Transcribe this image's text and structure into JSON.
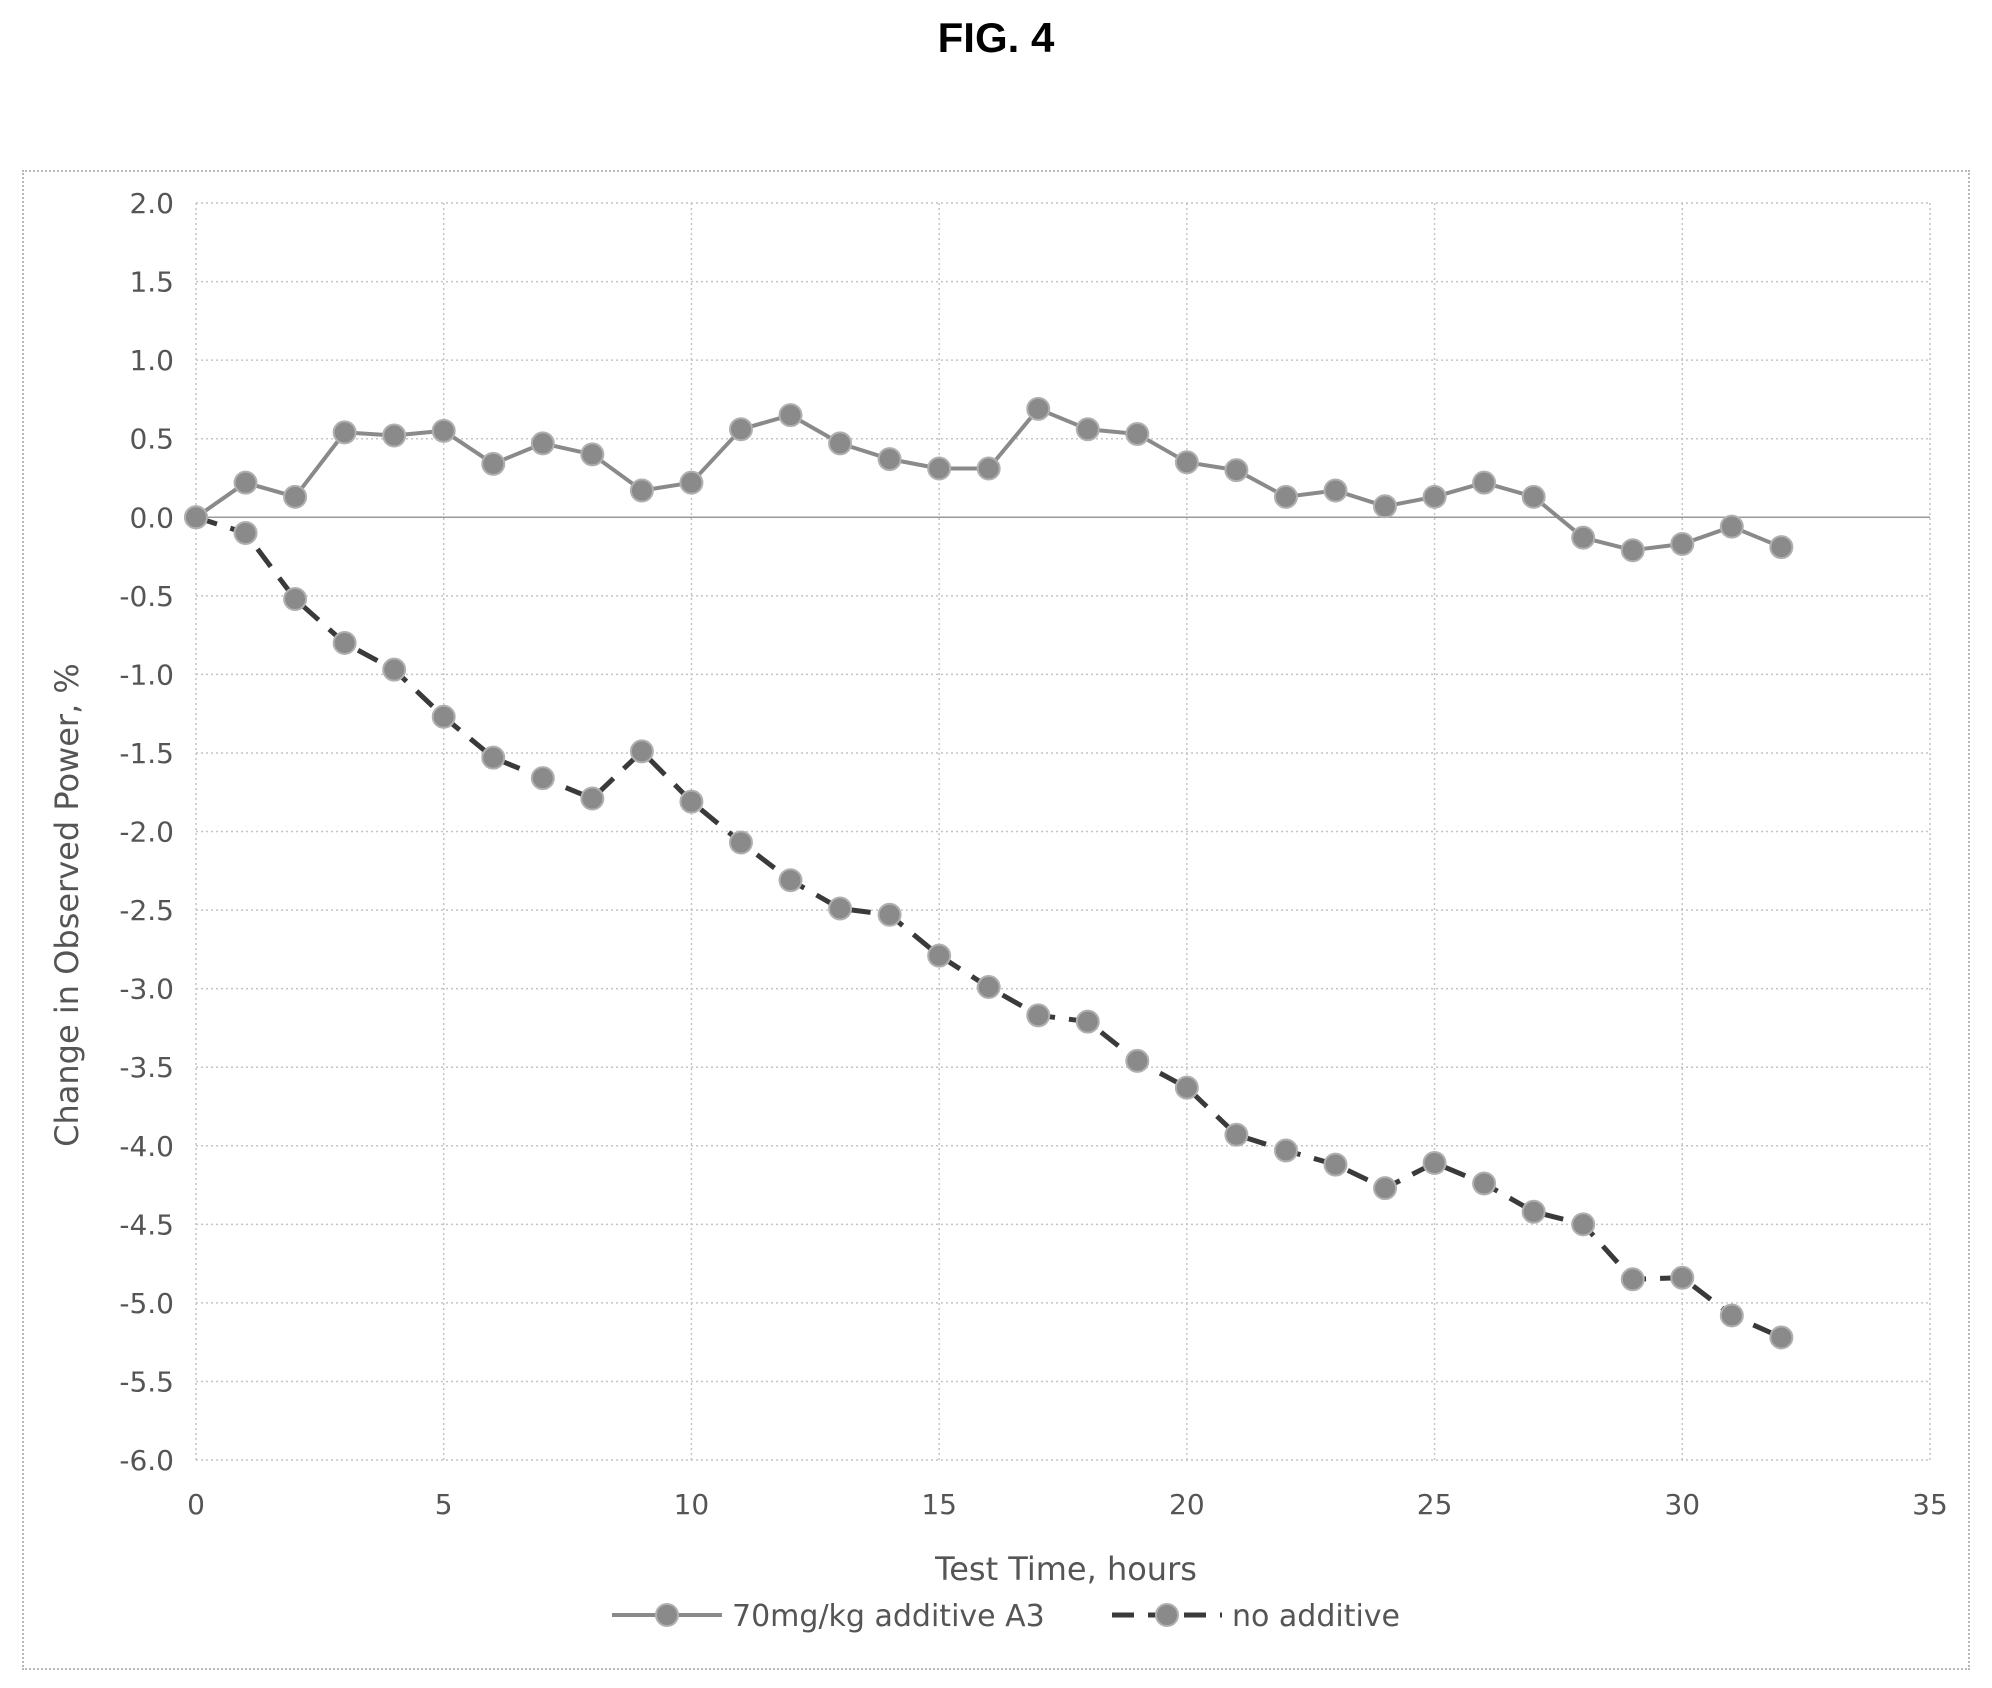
{
  "figure": {
    "title": "FIG. 4"
  },
  "chart_data": {
    "type": "line",
    "title": "",
    "xlabel": "Test Time, hours",
    "ylabel": "Change in Observed Power, %",
    "xlim": [
      0,
      35
    ],
    "ylim": [
      -6.0,
      2.0
    ],
    "x_ticks": [
      "0",
      "5",
      "10",
      "15",
      "20",
      "25",
      "30",
      "35"
    ],
    "y_ticks": [
      "2.0",
      "1.5",
      "1.0",
      "0.5",
      "0.0",
      "-0.5",
      "-1.0",
      "-1.5",
      "-2.0",
      "-2.5",
      "-3.0",
      "-3.5",
      "-4.0",
      "-4.5",
      "-5.0",
      "-5.5",
      "-6.0"
    ],
    "grid": true,
    "legend_position": "bottom",
    "x": [
      0,
      1,
      2,
      3,
      4,
      5,
      6,
      7,
      8,
      9,
      10,
      11,
      12,
      13,
      14,
      15,
      16,
      17,
      18,
      19,
      20,
      21,
      22,
      23,
      24,
      25,
      26,
      27,
      28,
      29,
      30,
      31,
      32
    ],
    "series": [
      {
        "name": "70mg/kg additive A3",
        "style": "solid",
        "color": "#8a8a8a",
        "values": [
          0.0,
          0.22,
          0.13,
          0.54,
          0.52,
          0.55,
          0.34,
          0.47,
          0.4,
          0.17,
          0.22,
          0.56,
          0.65,
          0.47,
          0.37,
          0.31,
          0.31,
          0.69,
          0.56,
          0.53,
          0.35,
          0.3,
          0.13,
          0.17,
          0.07,
          0.13,
          0.22,
          0.13,
          -0.13,
          -0.21,
          -0.17,
          -0.06,
          -0.19
        ]
      },
      {
        "name": "no additive",
        "style": "dashed",
        "color": "#3a3a3a",
        "marker_color": "#8a8a8a",
        "values": [
          0.0,
          -0.1,
          -0.52,
          -0.8,
          -0.97,
          -1.27,
          -1.53,
          -1.66,
          -1.79,
          -1.49,
          -1.81,
          -2.07,
          -2.31,
          -2.49,
          -2.53,
          -2.79,
          -2.99,
          -3.17,
          -3.21,
          -3.46,
          -3.63,
          -3.93,
          -4.03,
          -4.12,
          -4.27,
          -4.11,
          -4.24,
          -4.42,
          -4.5,
          -4.85,
          -4.84,
          -5.08,
          -5.22
        ]
      }
    ]
  }
}
